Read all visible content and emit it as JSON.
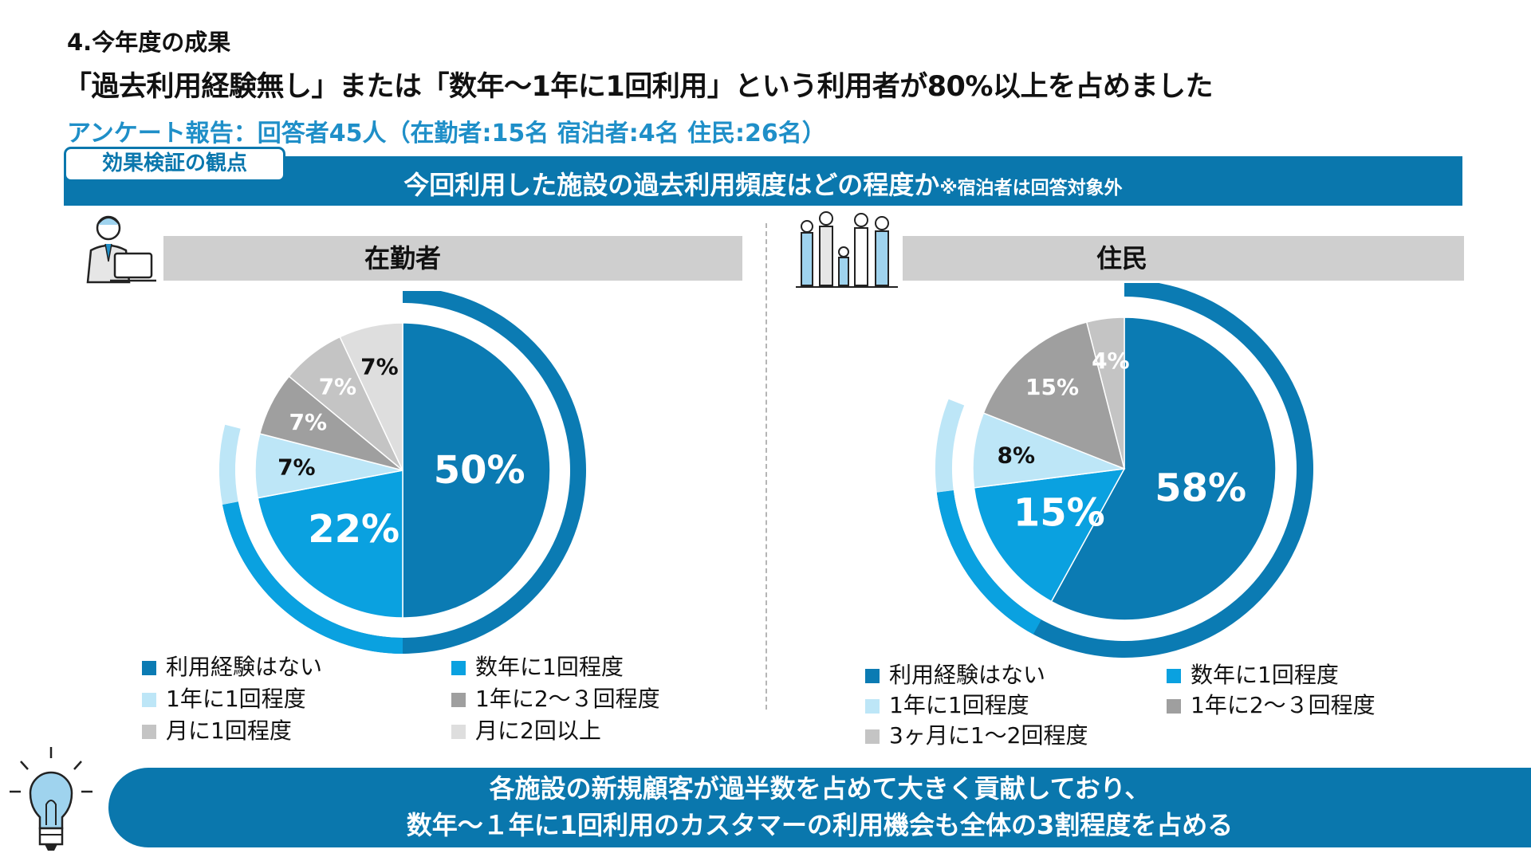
{
  "header": {
    "section_title": "4.今年度の成果",
    "headline": "「過去利用経験無し」または「数年～1年に1回利用」という利用者が80%以上を占めました",
    "survey_line": "アンケート報告：回答者45人（在勤者:15名 宿泊者:4名 住民:26名）"
  },
  "question": {
    "tab_label": "効果検証の観点",
    "text": "今回利用した施設の過去利用頻度はどの程度か",
    "note": "※宿泊者は回答対象外"
  },
  "colors": {
    "brand_blue": "#0a77ad",
    "accent_blue": "#1f8fc8",
    "slice_1": "#0b7bb3",
    "slice_2": "#0aa1e0",
    "slice_3": "#bde6f7",
    "slice_4": "#9f9f9f",
    "slice_5": "#c4c4c4",
    "slice_6": "#dedede"
  },
  "icons": {
    "left_panel": "office-worker-laptop-icon",
    "right_panel": "family-group-icon",
    "bottom": "lightbulb-icon"
  },
  "chart_data": [
    {
      "type": "pie",
      "title": "在勤者",
      "categories": [
        "利用経験はない",
        "数年に1回程度",
        "1年に1回程度",
        "1年に2～３回程度",
        "月に1回程度",
        "月に2回以上"
      ],
      "values": [
        50,
        22,
        7,
        7,
        7,
        7
      ],
      "labels": [
        "50%",
        "22%",
        "7%",
        "7%",
        "7%",
        "7%"
      ],
      "colors": [
        "#0b7bb3",
        "#0aa1e0",
        "#bde6f7",
        "#9f9f9f",
        "#c4c4c4",
        "#dedede"
      ],
      "label_colors": [
        "#ffffff",
        "#ffffff",
        "#111111",
        "#ffffff",
        "#ffffff",
        "#111111"
      ],
      "label_sizes": [
        "big",
        "big",
        "small",
        "small",
        "small",
        "small"
      ],
      "legend_position": "bottom"
    },
    {
      "type": "pie",
      "title": "住民",
      "categories": [
        "利用経験はない",
        "数年に1回程度",
        "1年に1回程度",
        "1年に2～３回程度",
        "3ヶ月に1～2回程度"
      ],
      "values": [
        58,
        15,
        8,
        15,
        4
      ],
      "labels": [
        "58%",
        "15%",
        "8%",
        "15%",
        "4%"
      ],
      "colors": [
        "#0b7bb3",
        "#0aa1e0",
        "#bde6f7",
        "#9f9f9f",
        "#c4c4c4"
      ],
      "label_colors": [
        "#ffffff",
        "#ffffff",
        "#111111",
        "#ffffff",
        "#ffffff"
      ],
      "label_sizes": [
        "big",
        "big",
        "small",
        "small",
        "small"
      ],
      "legend_position": "bottom"
    }
  ],
  "footer": {
    "line1": "各施設の新規顧客が過半数を占めて大きく貢献しており、",
    "line2": "数年～１年に1回利用のカスタマーの利用機会も全体の3割程度を占める"
  }
}
